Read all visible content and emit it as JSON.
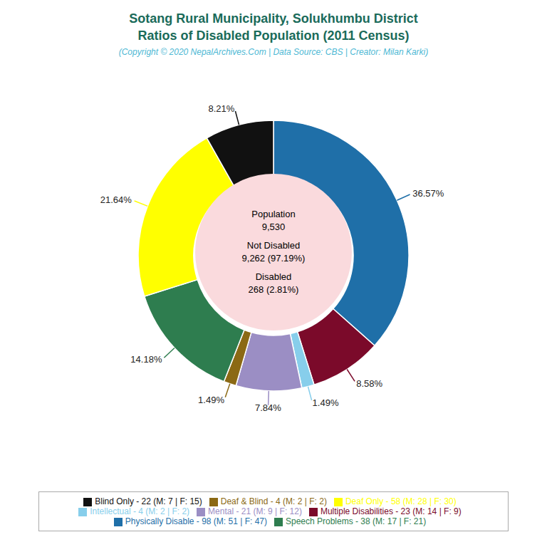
{
  "chart_data": {
    "type": "pie",
    "title": "Sotang Rural Municipality, Solukhumbu District\nRatios of Disabled Population (2011 Census)",
    "subtitle": "(Copyright © 2020 NepalArchives.Com | Data Source: CBS | Creator: Milan Karki)",
    "categories": [
      "Physically Disable - 98 (M: 51 | F: 47)",
      "Multiple Disabilities - 23 (M: 14 | F: 9)",
      "Intellectual - 4 (M: 2 | F: 2)",
      "Mental - 21 (M: 9 | F: 12)",
      "Deaf & Blind - 4 (M: 2 | F: 2)",
      "Speech Problems - 38 (M: 17 | F: 21)",
      "Deaf Only - 58 (M: 28 | F: 30)",
      "Blind Only - 22 (M: 7 | F: 15)"
    ],
    "values": [
      36.57,
      8.58,
      1.49,
      7.84,
      1.49,
      14.18,
      21.64,
      8.21
    ],
    "value_labels": [
      "36.57%",
      "8.58%",
      "1.49%",
      "7.84%",
      "1.49%",
      "14.18%",
      "21.64%",
      "8.21%"
    ],
    "colors": [
      "#1f6fa8",
      "#7b0a2a",
      "#87ceeb",
      "#9b8ec4",
      "#8b6914",
      "#2e7d4f",
      "#ffff00",
      "#111111"
    ],
    "data_labels": true,
    "legend": "bottom",
    "annotations": [
      "Population\n9,530\n\nNot Disabled\n9,262 (97.19%)\n\nDisabled\n268 (2.81%)"
    ]
  }
}
